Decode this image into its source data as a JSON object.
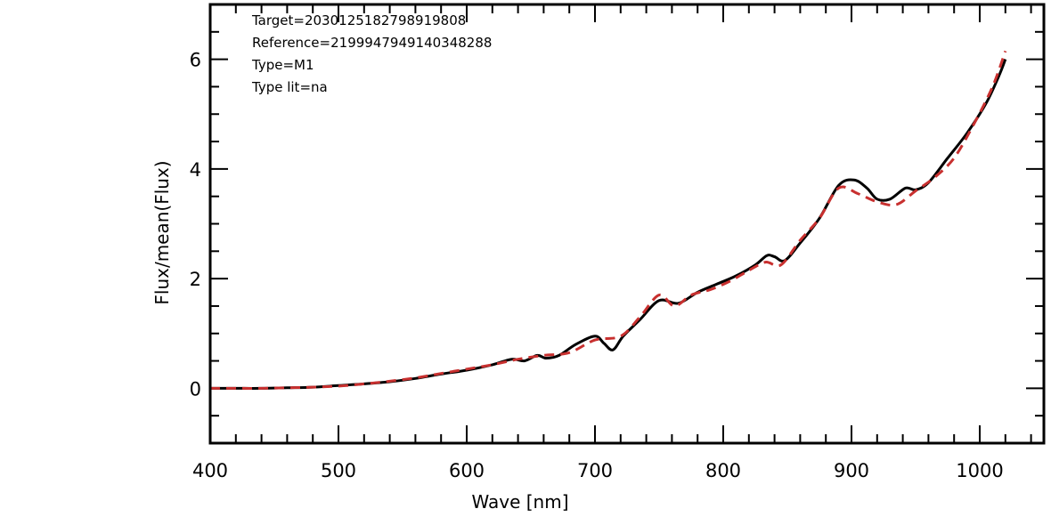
{
  "chart_data": {
    "type": "line",
    "xlabel": "Wave [nm]",
    "ylabel": "Flux/mean(Flux)",
    "xlim": [
      400,
      1050
    ],
    "ylim": [
      -1,
      7
    ],
    "x_ticks": [
      400,
      500,
      600,
      700,
      800,
      900,
      1000
    ],
    "y_ticks": [
      0,
      2,
      4,
      6
    ],
    "x_minor_step": 20,
    "y_minor_step": 0.5,
    "grid": false,
    "annotations": [
      "Target=2030125182798919808",
      "Reference=2199947949140348288",
      "Type=M1",
      "Type lit=na"
    ],
    "series": [
      {
        "color": "#000000",
        "style": "solid",
        "x": [
          400,
          420,
          440,
          460,
          480,
          500,
          520,
          540,
          560,
          580,
          600,
          620,
          635,
          645,
          655,
          662,
          672,
          685,
          700,
          707,
          714,
          722,
          735,
          750,
          765,
          780,
          795,
          810,
          825,
          834,
          840,
          848,
          860,
          875,
          890,
          902,
          912,
          920,
          930,
          942,
          950,
          960,
          975,
          990,
          1005,
          1015,
          1020
        ],
        "y": [
          0.0,
          0.0,
          0.0,
          0.01,
          0.02,
          0.05,
          0.08,
          0.12,
          0.18,
          0.26,
          0.33,
          0.43,
          0.53,
          0.5,
          0.6,
          0.55,
          0.6,
          0.8,
          0.95,
          0.82,
          0.7,
          0.95,
          1.25,
          1.6,
          1.55,
          1.75,
          1.9,
          2.05,
          2.25,
          2.42,
          2.4,
          2.33,
          2.65,
          3.1,
          3.7,
          3.8,
          3.65,
          3.45,
          3.45,
          3.65,
          3.62,
          3.75,
          4.2,
          4.65,
          5.2,
          5.7,
          6.0
        ]
      },
      {
        "color": "#c8302f",
        "style": "dashed",
        "x": [
          400,
          420,
          440,
          460,
          480,
          500,
          520,
          540,
          560,
          580,
          600,
          620,
          640,
          660,
          680,
          700,
          720,
          735,
          750,
          762,
          775,
          790,
          805,
          820,
          833,
          845,
          860,
          875,
          890,
          905,
          920,
          935,
          950,
          965,
          980,
          995,
          1010,
          1020
        ],
        "y": [
          0.0,
          0.0,
          0.0,
          0.01,
          0.02,
          0.04,
          0.08,
          0.13,
          0.19,
          0.27,
          0.35,
          0.43,
          0.53,
          0.6,
          0.65,
          0.88,
          0.95,
          1.3,
          1.7,
          1.5,
          1.7,
          1.8,
          1.95,
          2.15,
          2.3,
          2.25,
          2.7,
          3.1,
          3.65,
          3.55,
          3.4,
          3.35,
          3.6,
          3.85,
          4.2,
          4.8,
          5.5,
          6.15
        ]
      }
    ]
  }
}
